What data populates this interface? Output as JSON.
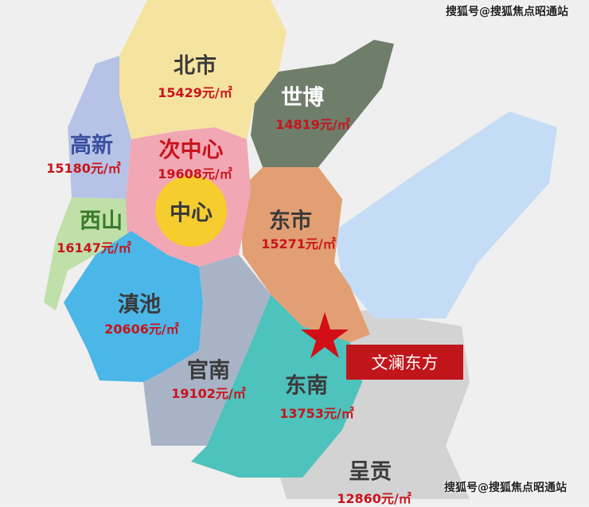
{
  "watermark": "搜狐号@搜狐焦点昭通站",
  "project": {
    "label": "文澜东方",
    "marker_icon": "star-icon",
    "color": "#c0161b"
  },
  "districts": [
    {
      "name": "北市",
      "price": "15429元/㎡",
      "color": "#f5e3a0"
    },
    {
      "name": "世博",
      "price": "14819元/㎡",
      "color": "#6f7d6b"
    },
    {
      "name": "高新",
      "price": "15180元/㎡",
      "color": "#b7c3e6"
    },
    {
      "name": "次中心",
      "price": "19608元/㎡",
      "color": "#f2a7b4"
    },
    {
      "name": "中心",
      "price": "",
      "color": "#f5cd2e"
    },
    {
      "name": "西山",
      "price": "16147元/㎡",
      "color": "#bfe0a8"
    },
    {
      "name": "东市",
      "price": "15271元/㎡",
      "color": "#e29f73"
    },
    {
      "name": "滇池",
      "price": "20606元/㎡",
      "color": "#4bb6e8"
    },
    {
      "name": "官南",
      "price": "19102元/㎡",
      "color": "#a9b3c6"
    },
    {
      "name": "东南",
      "price": "13753元/㎡",
      "color": "#4ec2bc"
    },
    {
      "name": "呈贡",
      "price": "12860元/㎡",
      "color": "#d0d0d0"
    }
  ]
}
